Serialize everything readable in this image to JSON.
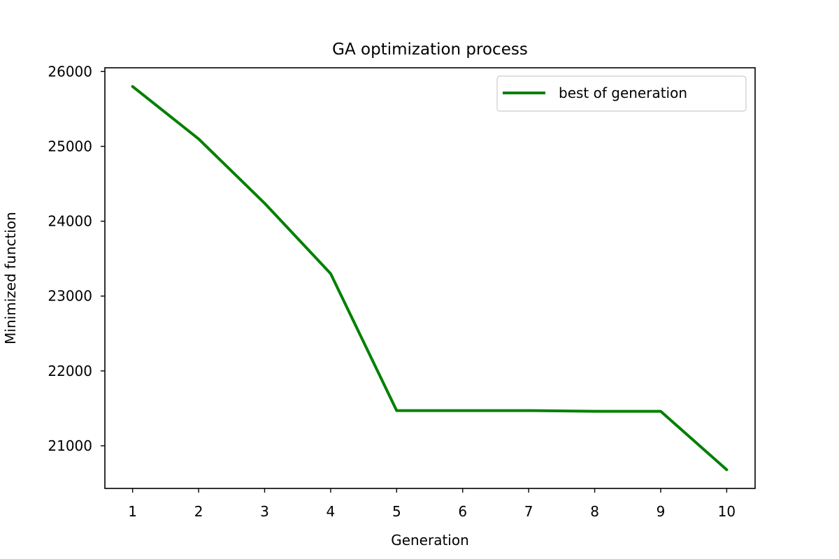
{
  "chart_data": {
    "type": "line",
    "title": "GA optimization process",
    "xlabel": "Generation",
    "ylabel": "Minimized function",
    "x": [
      1,
      2,
      3,
      4,
      5,
      6,
      7,
      8,
      9,
      10
    ],
    "series": [
      {
        "name": "best of generation",
        "color": "#008000",
        "values": [
          25800,
          25100,
          24240,
          23300,
          21470,
          21470,
          21470,
          21460,
          21460,
          20680
        ]
      }
    ],
    "xlim": [
      0.58,
      10.43
    ],
    "ylim": [
      20430,
      26050
    ],
    "xticks": [
      1,
      2,
      3,
      4,
      5,
      6,
      7,
      8,
      9,
      10
    ],
    "yticks": [
      21000,
      22000,
      23000,
      24000,
      25000,
      26000
    ],
    "grid": false,
    "legend": "top-right"
  }
}
